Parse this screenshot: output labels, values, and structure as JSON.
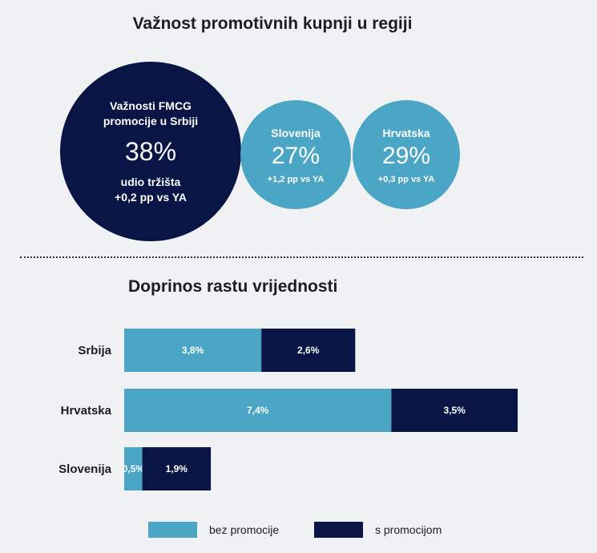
{
  "top": {
    "title": "Važnost promotivnih kupnji u regiji",
    "main": {
      "label_line1": "Važnosti FMCG",
      "label_line2": "promocije u Srbiji",
      "value": "38%",
      "sub_line1": "udio tržišta",
      "sub_line2": "+0,2 pp vs YA",
      "color": "#081545"
    },
    "slovenia": {
      "label": "Slovenija",
      "value": "27%",
      "sub": "+1,2 pp vs YA",
      "color": "#4aa6c4"
    },
    "croatia": {
      "label": "Hrvatska",
      "value": "29%",
      "sub": "+0,3 pp vs YA",
      "color": "#4aa6c4"
    }
  },
  "chart_data": {
    "type": "bar",
    "orientation": "horizontal",
    "stacked": true,
    "title": "Doprinos rastu vrijednosti",
    "categories": [
      "Srbija",
      "Hrvatska",
      "Slovenija"
    ],
    "series": [
      {
        "name": "bez promocije",
        "values": [
          3.8,
          7.4,
          0.5
        ],
        "labels": [
          "3,8%",
          "7,4%",
          "0,5%"
        ],
        "color": "#4aa6c4"
      },
      {
        "name": "s promocijom",
        "values": [
          2.6,
          3.5,
          1.9
        ],
        "labels": [
          "2,6%",
          "3,5%",
          "1,9%"
        ],
        "color": "#081545"
      }
    ],
    "legend_position": "bottom",
    "grid": false,
    "axis_visible": false
  }
}
